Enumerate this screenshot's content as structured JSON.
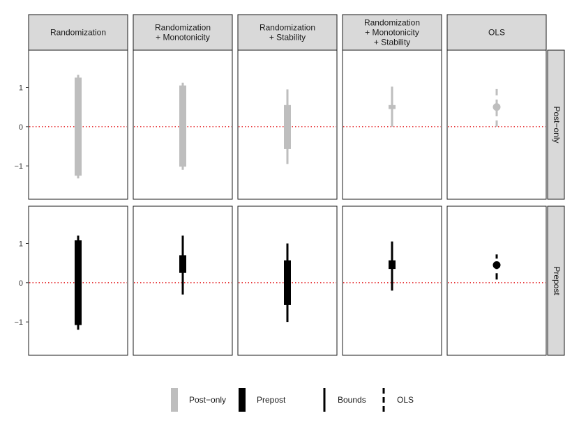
{
  "chart_data": {
    "type": "interval",
    "facet_columns": [
      [
        "Randomization"
      ],
      [
        "Randomization",
        "+ Monotonicity"
      ],
      [
        "Randomization",
        "+ Stability"
      ],
      [
        "Randomization",
        "+ Monotonicity",
        "+ Stability"
      ],
      [
        "OLS"
      ]
    ],
    "facet_rows": [
      "Post−only",
      "Prepost"
    ],
    "ylim": [
      -1.85,
      1.95
    ],
    "yticks": [
      {
        "value": 1,
        "label": "1"
      },
      {
        "value": 0,
        "label": "0"
      },
      {
        "value": -1,
        "label": "−1"
      }
    ],
    "reference_line": {
      "y": 0,
      "color": "#e41a1c",
      "style": "dotted"
    },
    "colors": {
      "Post-only": "#bebebe",
      "Prepost": "#000000"
    },
    "panels": [
      {
        "row": 0,
        "col": 0,
        "kind": "bounds",
        "outer": [
          -1.32,
          1.32
        ],
        "inner": [
          -1.25,
          1.25
        ]
      },
      {
        "row": 0,
        "col": 1,
        "kind": "bounds",
        "outer": [
          -1.1,
          1.12
        ],
        "inner": [
          -1.02,
          1.05
        ]
      },
      {
        "row": 0,
        "col": 2,
        "kind": "bounds",
        "outer": [
          -0.95,
          0.95
        ],
        "inner": [
          -0.57,
          0.55
        ]
      },
      {
        "row": 0,
        "col": 3,
        "kind": "bounds",
        "outer": [
          0.0,
          1.02
        ],
        "inner": [
          0.45,
          0.55
        ]
      },
      {
        "row": 0,
        "col": 4,
        "kind": "ols",
        "estimate": 0.5,
        "ci": [
          0.0,
          1.0
        ]
      },
      {
        "row": 1,
        "col": 0,
        "kind": "bounds",
        "outer": [
          -1.2,
          1.2
        ],
        "inner": [
          -1.08,
          1.08
        ]
      },
      {
        "row": 1,
        "col": 1,
        "kind": "bounds",
        "outer": [
          -0.3,
          1.2
        ],
        "inner": [
          0.25,
          0.7
        ]
      },
      {
        "row": 1,
        "col": 2,
        "kind": "bounds",
        "outer": [
          -1.0,
          1.0
        ],
        "inner": [
          -0.57,
          0.57
        ]
      },
      {
        "row": 1,
        "col": 3,
        "kind": "bounds",
        "outer": [
          -0.2,
          1.05
        ],
        "inner": [
          0.35,
          0.57
        ]
      },
      {
        "row": 1,
        "col": 4,
        "kind": "ols",
        "estimate": 0.45,
        "ci": [
          0.08,
          0.72
        ]
      }
    ],
    "legend": {
      "position": "bottom",
      "items": [
        {
          "label": "Post−only",
          "symbol": "bar",
          "color": "#bebebe"
        },
        {
          "label": "Prepost",
          "symbol": "bar",
          "color": "#000000"
        },
        {
          "label": "Bounds",
          "symbol": "line",
          "color": "#000000"
        },
        {
          "label": "OLS",
          "symbol": "dashed",
          "color": "#000000"
        }
      ]
    }
  }
}
